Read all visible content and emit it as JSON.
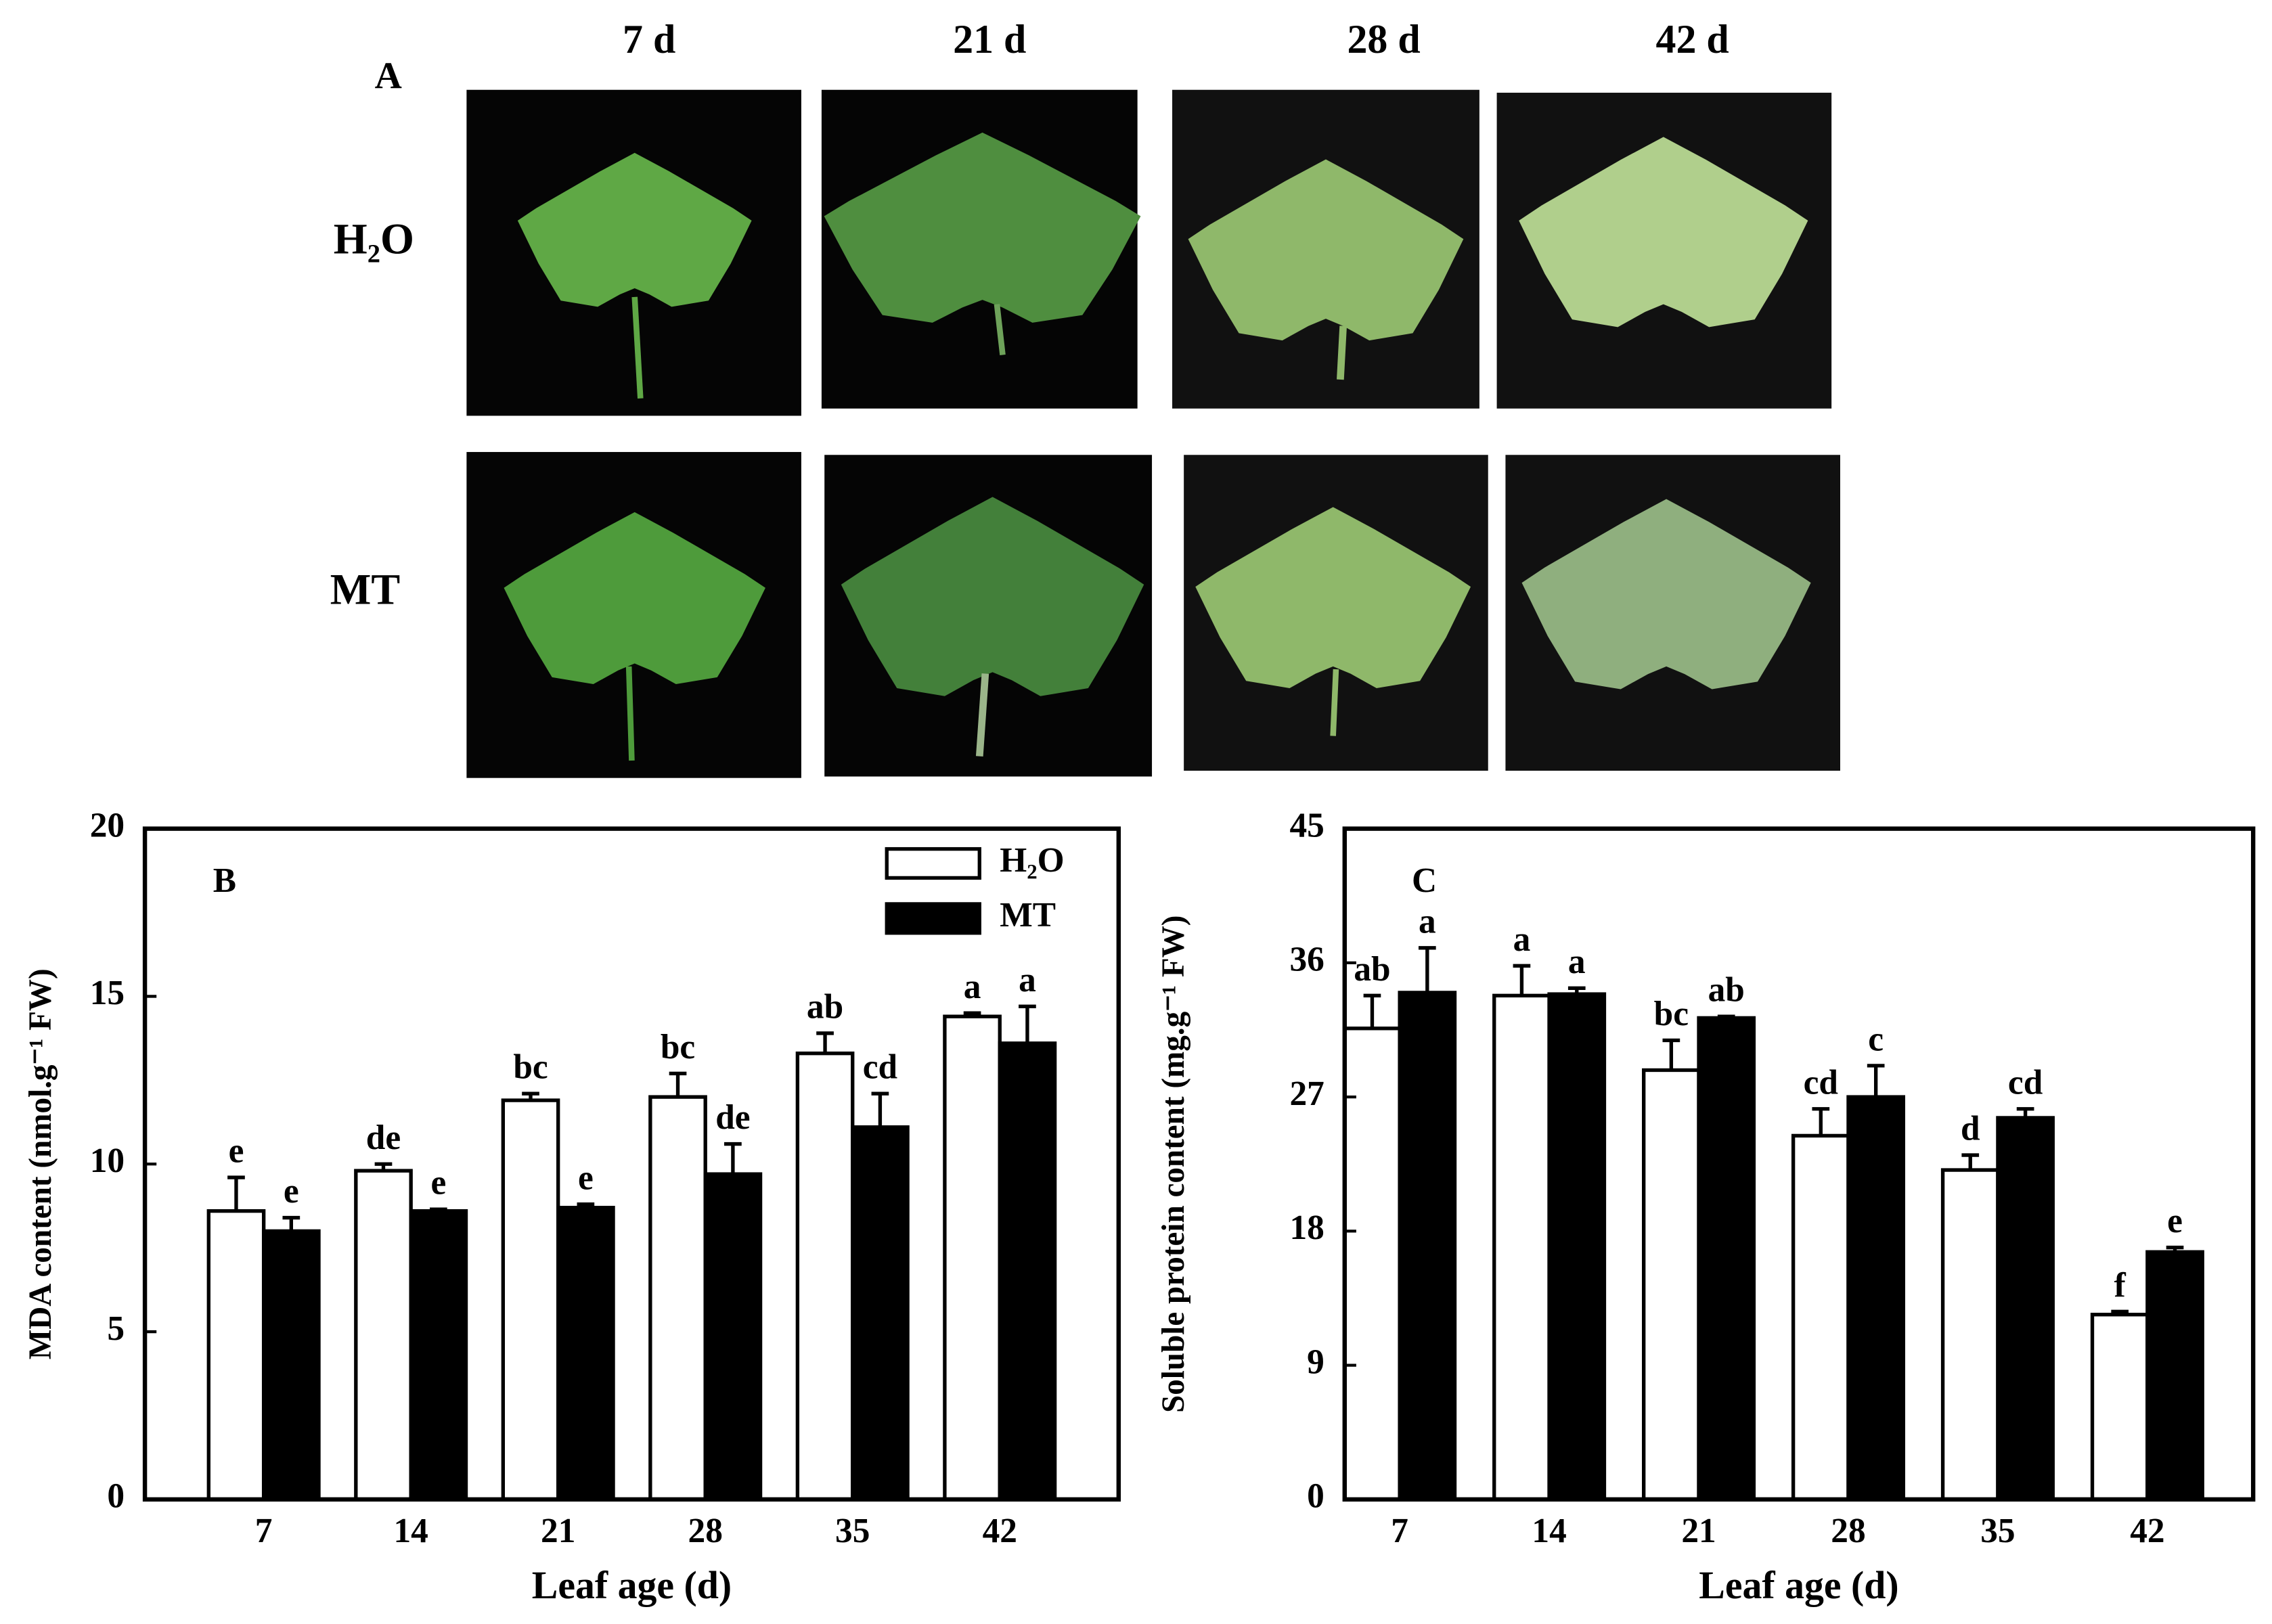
{
  "figure": {
    "panel_label": "A",
    "columns": [
      "7 d",
      "21 d",
      "28 d",
      "42 d"
    ],
    "rows": [
      "H₂O",
      "MT"
    ]
  },
  "chart_data": [
    {
      "type": "bar",
      "panel_label": "B",
      "y_label": "MDA content (nmol.g⁻¹ FW)",
      "x_label": "Leaf age  (d)",
      "categories": [
        "7",
        "14",
        "21",
        "28",
        "35",
        "42"
      ],
      "series": [
        {
          "name": "H₂O",
          "color": "#ffffff",
          "values": [
            8.6,
            9.8,
            11.9,
            12.0,
            13.3,
            14.4
          ],
          "errors": [
            1.0,
            0.2,
            0.2,
            0.7,
            0.6,
            0.1
          ],
          "letters": [
            "e",
            "de",
            "bc",
            "bc",
            "ab",
            "a"
          ]
        },
        {
          "name": "MT",
          "color": "#000000",
          "values": [
            8.0,
            8.6,
            8.7,
            9.7,
            11.1,
            13.6
          ],
          "errors": [
            0.4,
            0.05,
            0.1,
            0.9,
            1.0,
            1.1
          ],
          "letters": [
            "e",
            "e",
            "e",
            "de",
            "cd",
            "a"
          ]
        }
      ],
      "ylim": [
        0,
        20
      ],
      "yticks": [
        0,
        5,
        10,
        15,
        20
      ],
      "legend": "top-right"
    },
    {
      "type": "bar",
      "panel_label": "C",
      "y_label": "Soluble protein content (mg.g⁻¹ FW)",
      "x_label": "Leaf age  (d)",
      "categories": [
        "7",
        "14",
        "21",
        "28",
        "35",
        "42"
      ],
      "series": [
        {
          "color": "#ffffff",
          "values": [
            31.6,
            33.8,
            28.8,
            24.4,
            22.1,
            12.4
          ],
          "errors": [
            2.2,
            2.0,
            2.0,
            1.8,
            1.0,
            0.2
          ],
          "letters": [
            "ab",
            "a",
            "bc",
            "cd",
            "d",
            "f"
          ]
        },
        {
          "color": "#000000",
          "values": [
            34.0,
            33.9,
            32.3,
            27.0,
            25.6,
            16.6
          ],
          "errors": [
            3.0,
            0.4,
            0.1,
            2.1,
            0.6,
            0.3
          ],
          "letters": [
            "a",
            "a",
            "ab",
            "c",
            "cd",
            "e"
          ]
        }
      ],
      "ylim": [
        0,
        45
      ],
      "yticks": [
        0,
        9,
        18,
        27,
        36,
        45
      ]
    }
  ]
}
